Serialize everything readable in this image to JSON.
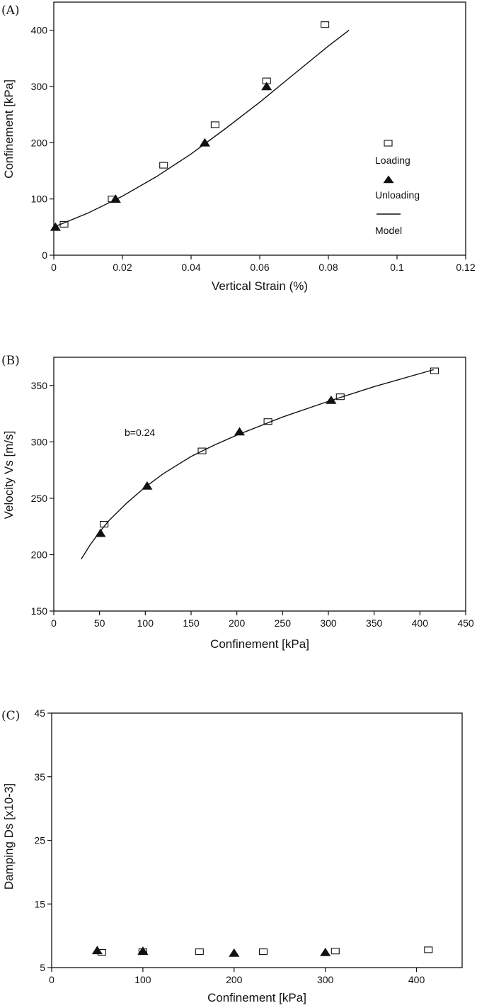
{
  "chart_data": [
    {
      "type": "scatter",
      "panel_label": "(A)",
      "xlabel": "Vertical Strain (%)",
      "ylabel": "Confinement [kPa]",
      "xlim": [
        0,
        0.12
      ],
      "ylim": [
        0,
        450
      ],
      "xticks": [
        0,
        0.02,
        0.04,
        0.06,
        0.08,
        0.1,
        0.12
      ],
      "xtick_labels": [
        "0",
        "0.02",
        "0.04",
        "0.06",
        "0.08",
        "0.1",
        "0.12"
      ],
      "yticks": [
        0,
        100,
        200,
        300,
        400
      ],
      "ytick_labels": [
        "0",
        "100",
        "200",
        "300",
        "400"
      ],
      "grid": false,
      "legend": {
        "placement": "right",
        "entries": [
          {
            "label": "Loading",
            "marker": "square"
          },
          {
            "label": "Unloading",
            "marker": "triangle"
          },
          {
            "label": "Model",
            "marker": "line"
          }
        ]
      },
      "series": [
        {
          "name": "Loading",
          "marker": "square",
          "x": [
            0.003,
            0.017,
            0.032,
            0.047,
            0.062,
            0.079
          ],
          "y": [
            55,
            100,
            160,
            232,
            310,
            410
          ]
        },
        {
          "name": "Unloading",
          "marker": "triangle",
          "x": [
            0.0005,
            0.018,
            0.044,
            0.062
          ],
          "y": [
            50,
            100,
            200,
            300
          ]
        },
        {
          "name": "Model",
          "marker": "line",
          "x": [
            0,
            0.01,
            0.02,
            0.03,
            0.04,
            0.05,
            0.06,
            0.07,
            0.08,
            0.086
          ],
          "y": [
            50,
            75,
            105,
            140,
            180,
            225,
            272,
            322,
            372,
            400
          ]
        }
      ]
    },
    {
      "type": "scatter",
      "panel_label": "(B)",
      "xlabel": "Confinement [kPa]",
      "ylabel": "Velocity Vs [m/s]",
      "annotation": "b=0.24",
      "xlim": [
        0,
        450
      ],
      "ylim": [
        150,
        375
      ],
      "xticks": [
        0,
        50,
        100,
        150,
        200,
        250,
        300,
        350,
        400,
        450
      ],
      "xtick_labels": [
        "0",
        "50",
        "100",
        "150",
        "200",
        "250",
        "300",
        "350",
        "400",
        "450"
      ],
      "yticks": [
        150,
        200,
        250,
        300,
        350
      ],
      "ytick_labels": [
        "150",
        "200",
        "250",
        "300",
        "350"
      ],
      "grid": false,
      "series": [
        {
          "name": "",
          "marker": "square",
          "x": [
            55,
            162,
            234,
            313,
            416
          ],
          "y": [
            227,
            292,
            318,
            340,
            363
          ]
        },
        {
          "name": "",
          "marker": "triangle",
          "x": [
            51,
            102,
            203,
            303
          ],
          "y": [
            219,
            261,
            309,
            337
          ]
        },
        {
          "name": "",
          "marker": "line",
          "x": [
            30,
            40,
            50,
            60,
            80,
            100,
            120,
            150,
            175,
            200,
            250,
            300,
            350,
            415
          ],
          "y": [
            196,
            209,
            220,
            230,
            246,
            260,
            272,
            287,
            297,
            306,
            322,
            336,
            349,
            364
          ]
        }
      ]
    },
    {
      "type": "scatter",
      "panel_label": "(C)",
      "xlabel": "Confinement [kPa]",
      "ylabel": "Damping Ds [x10-3]",
      "xlim": [
        0,
        450
      ],
      "ylim": [
        5,
        45
      ],
      "xticks": [
        0,
        100,
        200,
        300,
        400
      ],
      "xtick_labels": [
        "0",
        "100",
        "200",
        "300",
        "400"
      ],
      "yticks": [
        5,
        15,
        25,
        35,
        45
      ],
      "ytick_labels": [
        "5",
        "15",
        "25",
        "35",
        "45"
      ],
      "grid": false,
      "series": [
        {
          "name": "",
          "marker": "square",
          "x": [
            55,
            100,
            162,
            232,
            311,
            413
          ],
          "y": [
            7.4,
            7.5,
            7.5,
            7.5,
            7.6,
            7.8
          ]
        },
        {
          "name": "",
          "marker": "triangle",
          "x": [
            50,
            100,
            200,
            300
          ],
          "y": [
            7.7,
            7.6,
            7.3,
            7.4
          ]
        }
      ]
    }
  ]
}
